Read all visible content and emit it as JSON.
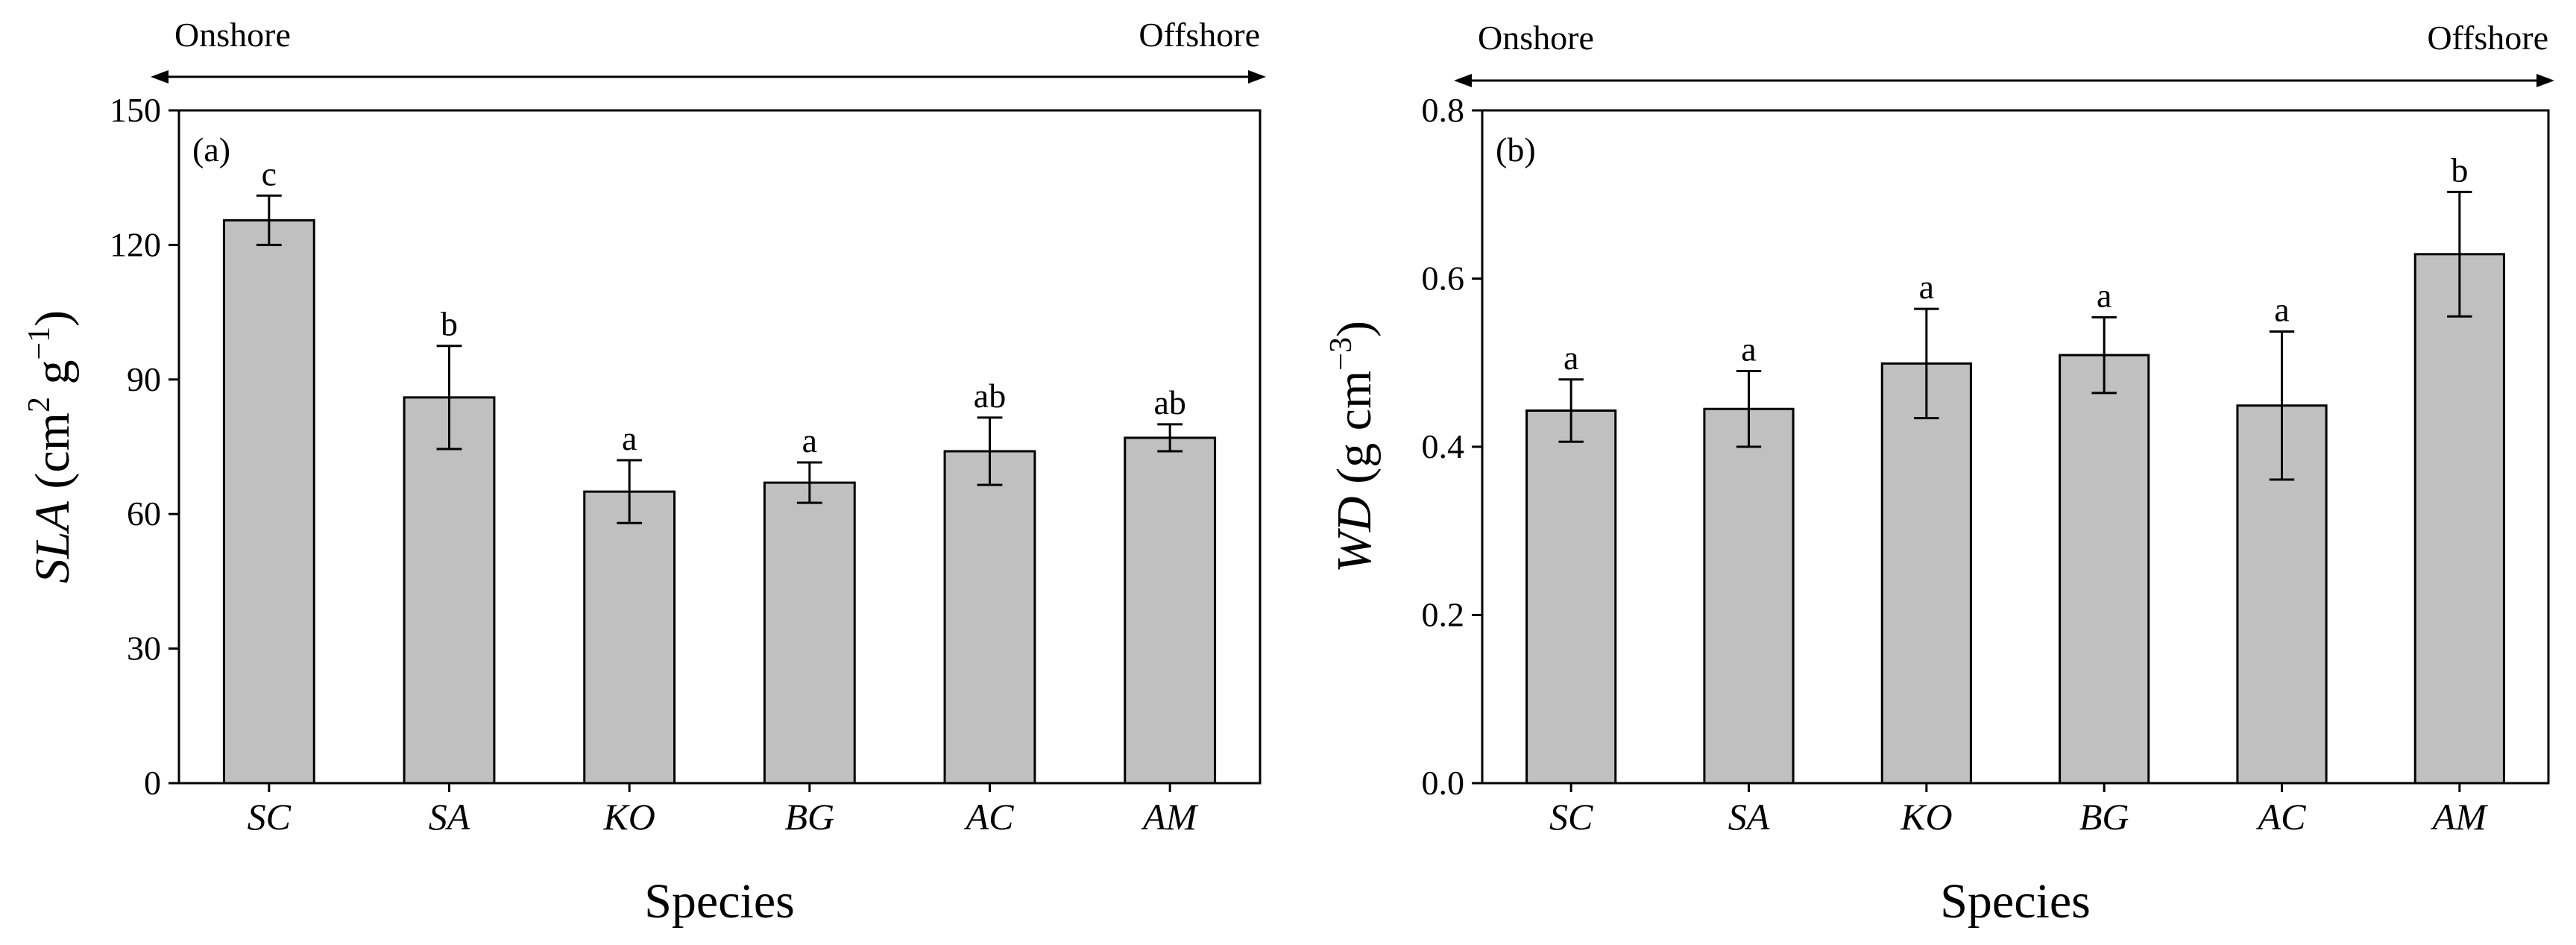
{
  "colors": {
    "bar_fill": "#c0c0c0",
    "stroke": "#000000",
    "background": "#ffffff"
  },
  "chart_data": [
    {
      "type": "bar",
      "panel_label": "(a)",
      "direction": {
        "left": "Onshore",
        "right": "Offshore"
      },
      "categories": [
        "SC",
        "SA",
        "KO",
        "BG",
        "AC",
        "AM"
      ],
      "values": [
        125.5,
        86,
        65,
        67,
        74,
        77
      ],
      "errors": [
        5.5,
        11.5,
        7,
        4.5,
        7.5,
        3
      ],
      "significance": [
        "c",
        "b",
        "a",
        "a",
        "ab",
        "ab"
      ],
      "xlabel": "Species",
      "ylabel": {
        "var": "SLA",
        "unit_open": " (cm",
        "sup1": "2",
        "mid": " g",
        "sup2": "−1",
        "unit_close": ")"
      },
      "ylim": [
        0,
        150
      ],
      "yticks": [
        0,
        30,
        60,
        90,
        120,
        150
      ],
      "ytick_labels": [
        "0",
        "30",
        "60",
        "90",
        "120",
        "150"
      ],
      "grid": false
    },
    {
      "type": "bar",
      "panel_label": "(b)",
      "direction": {
        "left": "Onshore",
        "right": "Offshore"
      },
      "categories": [
        "SC",
        "SA",
        "KO",
        "BG",
        "AC",
        "AM"
      ],
      "values": [
        0.443,
        0.445,
        0.499,
        0.509,
        0.449,
        0.629
      ],
      "errors": [
        0.037,
        0.045,
        0.065,
        0.045,
        0.088,
        0.074
      ],
      "significance": [
        "a",
        "a",
        "a",
        "a",
        "a",
        "b"
      ],
      "xlabel": "Species",
      "ylabel": {
        "var": "WD",
        "unit_open": " (g cm",
        "sup1": "−3",
        "mid": "",
        "sup2": "",
        "unit_close": ")"
      },
      "ylim": [
        0,
        0.8
      ],
      "yticks": [
        0,
        0.2,
        0.4,
        0.6,
        0.8
      ],
      "ytick_labels": [
        "0.0",
        "0.2",
        "0.4",
        "0.6",
        "0.8"
      ],
      "grid": false
    }
  ]
}
